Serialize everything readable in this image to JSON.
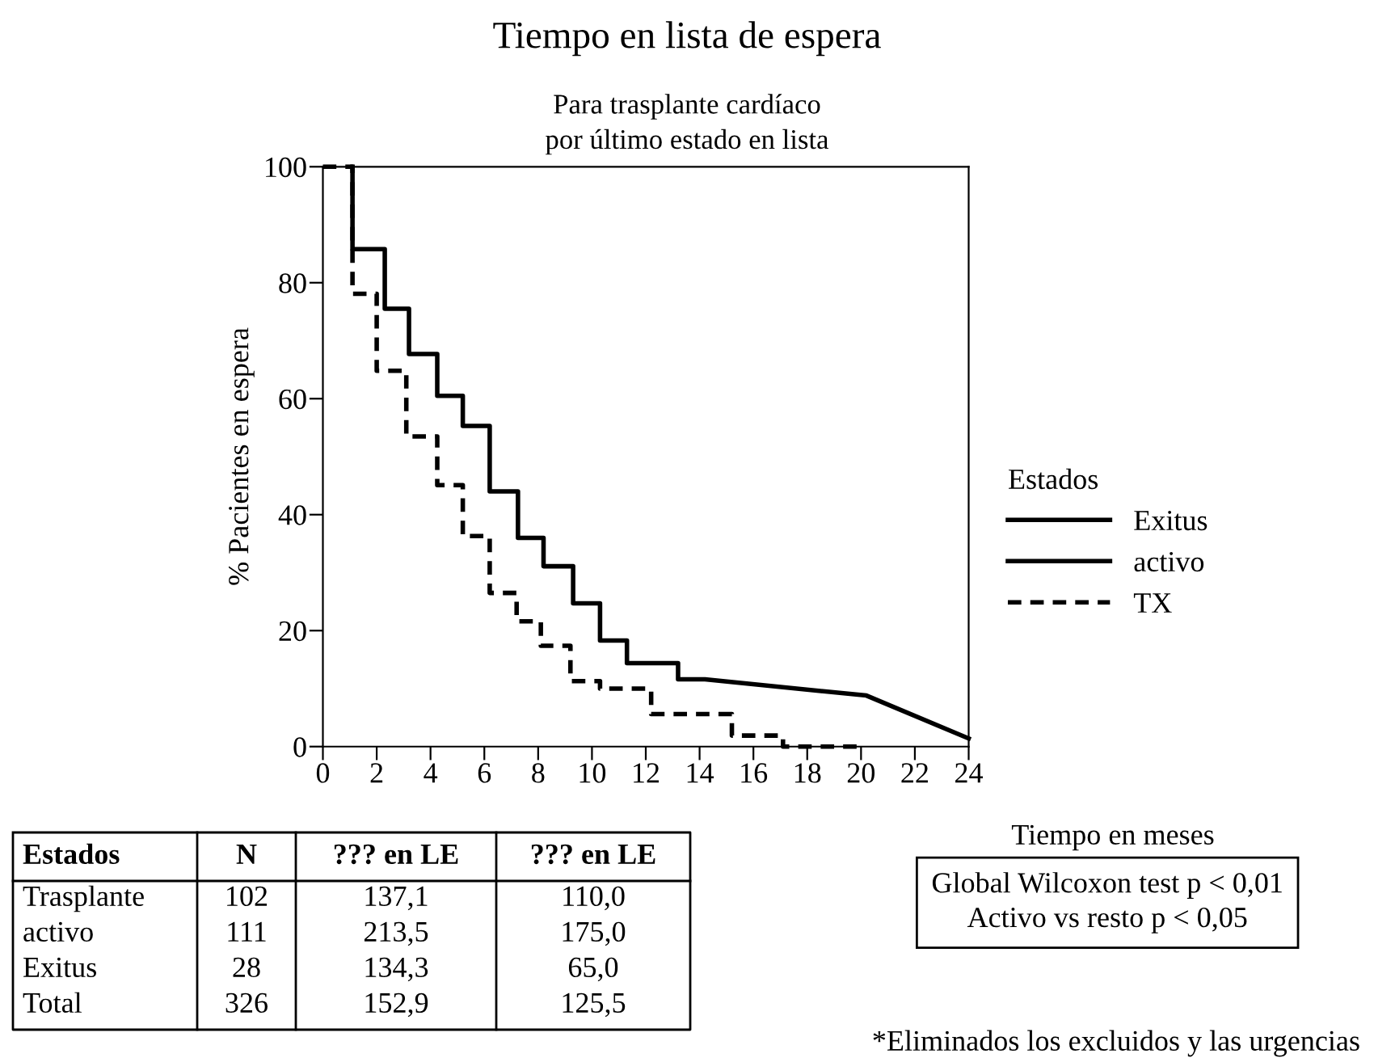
{
  "chart_data": {
    "type": "line",
    "title": "Tiempo en lista de espera",
    "subtitle": "Para trasplante cardíaco\npor último estado en lista",
    "xlabel": "Tiempo en meses",
    "ylabel": "% Pacientes en espera",
    "legend_title": "Estados",
    "legend": "right",
    "grid": false,
    "xlim": [
      0,
      24
    ],
    "ylim": [
      0,
      100
    ],
    "xticks": [
      0,
      2,
      4,
      6,
      8,
      10,
      12,
      14,
      16,
      18,
      20,
      22,
      24
    ],
    "yticks": [
      0,
      20,
      40,
      60,
      80,
      100
    ],
    "series": [
      {
        "name": "Exitus",
        "color": "#000000",
        "line_style": "solid"
      },
      {
        "name": "activo",
        "color": "#000000",
        "line_style": "solid",
        "x": [
          1.1,
          1.1,
          2.3,
          2.3,
          3.2,
          3.2,
          4.25,
          4.25,
          5.2,
          5.2,
          6.2,
          6.2,
          7.25,
          7.25,
          8.2,
          8.2,
          9.3,
          9.3,
          10.3,
          10.3,
          11.3,
          11.3,
          13.2,
          13.2,
          14.2,
          20.2,
          24
        ],
        "values": [
          100,
          85.8,
          85.8,
          75.5,
          75.5,
          67.7,
          67.7,
          60.5,
          60.5,
          55.3,
          55.3,
          44,
          44,
          36,
          36,
          31.1,
          31.1,
          24.7,
          24.7,
          18.3,
          18.3,
          14.4,
          14.4,
          11.6,
          11.6,
          8.8,
          1.4
        ]
      },
      {
        "name": "TX",
        "color": "#000000",
        "line_style": "dashed",
        "x": [
          0,
          1.1,
          1.1,
          2.0,
          2.0,
          3.1,
          3.1,
          4.25,
          4.25,
          5.2,
          5.2,
          6.2,
          6.2,
          7.2,
          7.2,
          8.1,
          8.1,
          9.2,
          9.2,
          10.3,
          10.3,
          12.2,
          12.2,
          15.2,
          15.2,
          17.1,
          17.1,
          20.0
        ],
        "values": [
          100,
          100,
          78.1,
          78.1,
          64.8,
          64.8,
          53.5,
          53.5,
          45.1,
          45.1,
          36.3,
          36.3,
          26.5,
          26.5,
          21.6,
          21.6,
          17.4,
          17.4,
          11.3,
          11.3,
          10.0,
          10.0,
          5.6,
          5.6,
          1.9,
          1.9,
          0,
          0
        ]
      }
    ],
    "annotations": [
      "Global Wilcoxon test p < 0,01\nActivo vs resto p < 0,05",
      "*Eliminados los excluidos y las urgencias",
      "Estados",
      "N",
      "??? en LE",
      "??? en LE",
      "Trasplante",
      "102",
      "137,1",
      "110,0",
      "activo",
      "111",
      "213,5",
      "175,0",
      "Exitus",
      "28",
      "134,3",
      "65,0",
      "Total",
      "326",
      "152,9",
      "125,5"
    ]
  }
}
